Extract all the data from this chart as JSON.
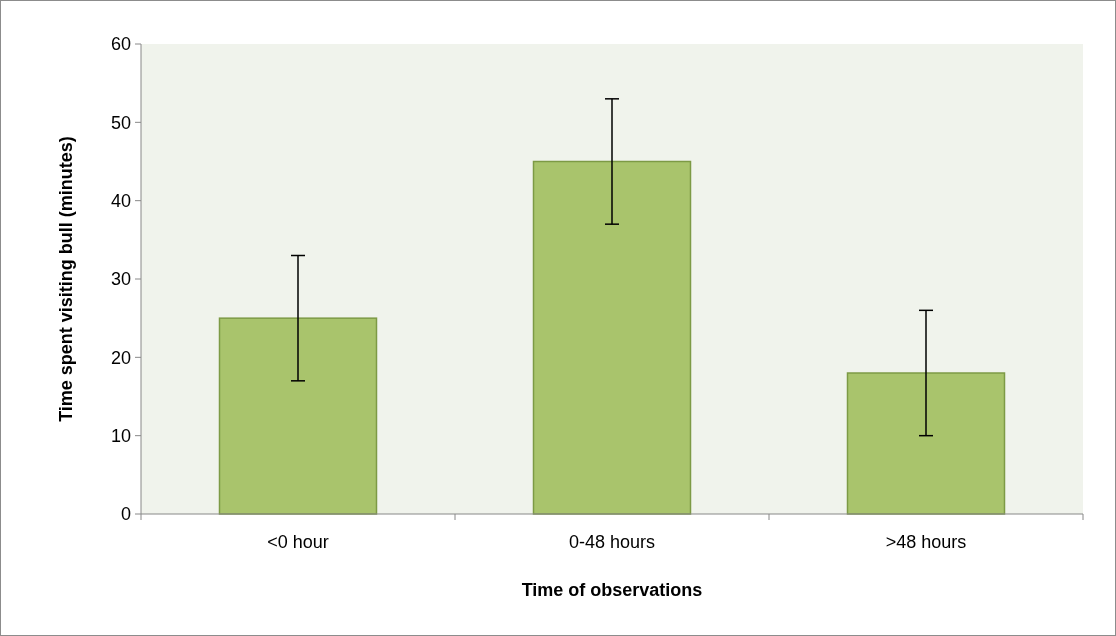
{
  "chart_data": {
    "type": "bar",
    "xlabel": "Time of observations",
    "ylabel": "Time spent visiting bull (minutes)",
    "categories": [
      "<0 hour",
      "0-48 hours",
      ">48 hours"
    ],
    "values": [
      25,
      45,
      18
    ],
    "errors": [
      8,
      8,
      8
    ],
    "color": "#a9c46c",
    "ylim": [
      0,
      60
    ],
    "yticks": [
      0,
      10,
      20,
      30,
      40,
      50,
      60
    ],
    "grid": false
  }
}
